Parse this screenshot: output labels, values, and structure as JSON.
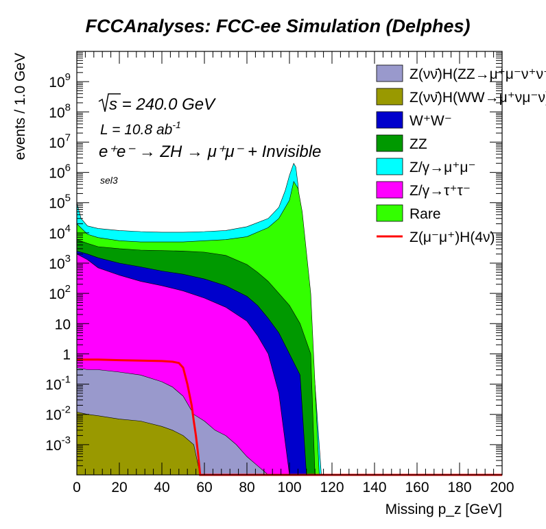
{
  "chart_data": {
    "type": "area",
    "title": "FCCAnalyses: FCC-ee Simulation (Delphes)",
    "xlabel": "Missing p_z [GeV]",
    "ylabel": "events / 1.0 GeV",
    "xlim": [
      0,
      200
    ],
    "ylim": [
      0.0001,
      10000000000
    ],
    "y_scale": "log",
    "stacked": true,
    "x_ticks": [
      0,
      20,
      40,
      60,
      80,
      100,
      120,
      140,
      160,
      180,
      200
    ],
    "y_ticks": [
      {
        "value": 0.001,
        "label": "10^-3"
      },
      {
        "value": 0.01,
        "label": "10^-2"
      },
      {
        "value": 0.1,
        "label": "10^-1"
      },
      {
        "value": 1,
        "label": "1"
      },
      {
        "value": 10,
        "label": "10"
      },
      {
        "value": 100,
        "label": "10^2"
      },
      {
        "value": 1000,
        "label": "10^3"
      },
      {
        "value": 10000,
        "label": "10^4"
      },
      {
        "value": 100000,
        "label": "10^5"
      },
      {
        "value": 1000000,
        "label": "10^6"
      },
      {
        "value": 10000000,
        "label": "10^7"
      },
      {
        "value": 100000000,
        "label": "10^8"
      },
      {
        "value": 1000000000,
        "label": "10^9"
      }
    ],
    "annotations": {
      "sqrt_s": "s = 240.0 GeV",
      "lumi": "L = 10.8 ab",
      "lumi_exp": "-1",
      "process": "e⁺e⁻ → ZH → μ⁺μ⁻ + Invisible",
      "selection": "sel3"
    },
    "legend_position": "top-right",
    "series": [
      {
        "name": "Z(νν̄)H(ZZ→μ⁺μ⁻ν⁺ν⁻)",
        "color": "#9999cc",
        "x": [
          0,
          5,
          10,
          20,
          30,
          40,
          45,
          50,
          55,
          60,
          65,
          70,
          75,
          80,
          85,
          90
        ],
        "y": [
          0.35,
          0.3,
          0.3,
          0.25,
          0.2,
          0.12,
          0.08,
          0.04,
          0.01,
          0.006,
          0.003,
          0.002,
          0.001,
          0.0004,
          0.0002,
          0.0001
        ]
      },
      {
        "name": "Z(νν̄)H(WW→μ⁺νμ⁻ν)",
        "color": "#999900",
        "x": [
          0,
          5,
          10,
          20,
          30,
          40,
          45,
          50,
          55,
          58
        ],
        "y": [
          0.012,
          0.01,
          0.009,
          0.007,
          0.006,
          0.004,
          0.003,
          0.002,
          0.001,
          0.0001
        ]
      },
      {
        "name": "W⁺W⁻",
        "color": "#0000cc",
        "x": [
          0,
          5,
          10,
          20,
          30,
          40,
          50,
          60,
          70,
          80,
          85,
          90,
          95,
          100,
          105,
          108
        ],
        "y": [
          2500,
          2000,
          1500,
          1000,
          750,
          550,
          430,
          300,
          180,
          80,
          40,
          15,
          5,
          1,
          0.2,
          0.0001
        ]
      },
      {
        "name": "ZZ",
        "color": "#009900",
        "x": [
          0,
          5,
          10,
          20,
          30,
          40,
          50,
          60,
          70,
          80,
          85,
          90,
          95,
          100,
          105,
          110,
          112
        ],
        "y": [
          6000,
          4500,
          3500,
          3000,
          2700,
          2600,
          2500,
          2300,
          1800,
          900,
          500,
          250,
          100,
          40,
          10,
          1,
          0.0001
        ]
      },
      {
        "name": "Z/γ→μ⁺μ⁻",
        "color": "#00ffff",
        "x": [
          0,
          2,
          5,
          10,
          20,
          30,
          40,
          50,
          60,
          70,
          80,
          90,
          95,
          98,
          100,
          102,
          103,
          104,
          106,
          110,
          115
        ],
        "y": [
          100000,
          30000,
          17000,
          14000,
          12000,
          11000,
          10500,
          10500,
          11000,
          12000,
          16000,
          30000,
          70000,
          250000,
          800000,
          2000000,
          1500000,
          400000,
          5000,
          10,
          0.0001
        ]
      },
      {
        "name": "Z/γ→τ⁺τ⁻",
        "color": "#ff00ff",
        "x": [
          0,
          5,
          10,
          20,
          30,
          40,
          50,
          60,
          70,
          80,
          85,
          90,
          95,
          100
        ],
        "y": [
          2000,
          1300,
          700,
          400,
          250,
          180,
          120,
          70,
          35,
          12,
          4,
          1,
          0.05,
          0.0001
        ]
      },
      {
        "name": "Rare",
        "color": "#33ff00",
        "x": [
          0,
          5,
          10,
          20,
          30,
          40,
          50,
          60,
          70,
          80,
          90,
          95,
          100,
          102,
          104,
          106,
          110,
          114
        ],
        "y": [
          20000,
          9000,
          7000,
          5500,
          5000,
          5000,
          5000,
          5500,
          6000,
          7500,
          15000,
          30000,
          120000,
          500000,
          300000,
          50000,
          100,
          0.0001
        ]
      },
      {
        "name": "Z(μ⁻μ⁺)H(4ν)",
        "color": "#ff0000",
        "line": true,
        "x": [
          0,
          10,
          20,
          30,
          40,
          45,
          48,
          50,
          52,
          54,
          55,
          56,
          57,
          58,
          60,
          200
        ],
        "y": [
          0.65,
          0.65,
          0.62,
          0.6,
          0.58,
          0.55,
          0.5,
          0.35,
          0.1,
          0.02,
          0.006,
          0.002,
          0.0005,
          0.0001,
          0.0001,
          0.0001
        ]
      }
    ]
  }
}
